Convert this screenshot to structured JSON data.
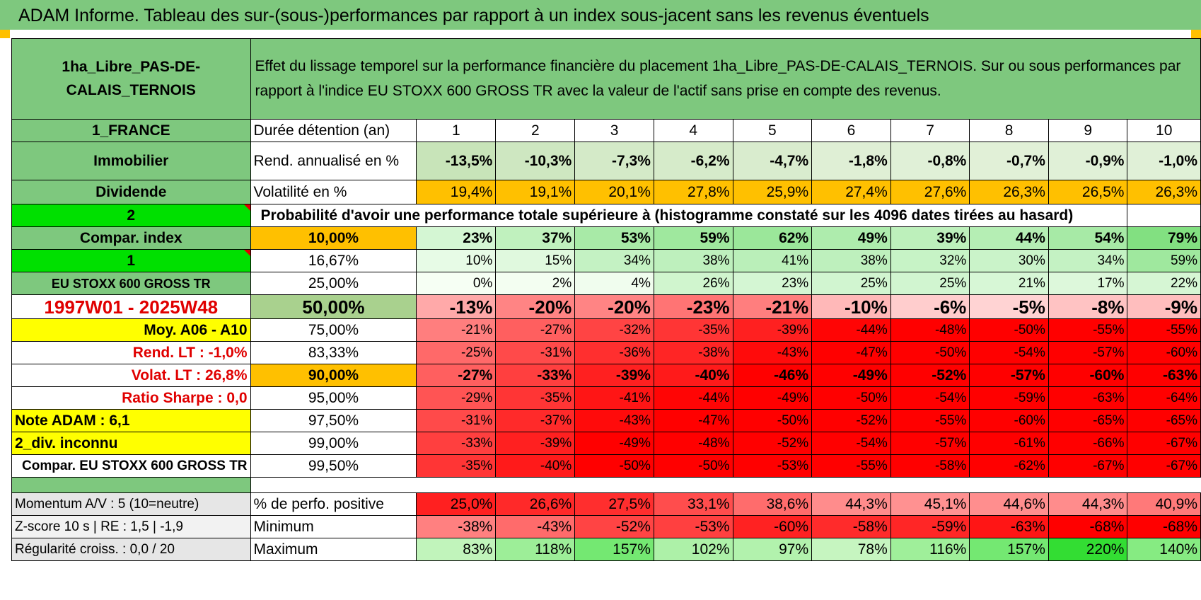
{
  "title": "ADAM Informe. Tableau des sur-(sous-)performances par rapport à un index sous-jacent sans les revenus éventuels",
  "asset_name": "1ha_Libre_PAS-DE-CALAIS_TERNOIS",
  "description": "Effet du lissage temporel sur la performance financière du placement 1ha_Libre_PAS-DE-CALAIS_TERNOIS. Sur ou sous performances par rapport à l'indice EU STOXX 600 GROSS TR avec la valeur de l'actif sans prise en compte des revenus.",
  "left_labels": {
    "country": "1_FRANCE",
    "category": "Immobilier",
    "type": "Dividende",
    "num2": "2",
    "compar_index": "Compar. index",
    "num1": "1",
    "index_name": "EU STOXX 600 GROSS TR",
    "period": "1997W01 - 2025W48",
    "moy": "Moy. A06 - A10",
    "rend_lt": "Rend. LT :    -1,0%",
    "volat_lt": "Volat. LT :    26,8%",
    "sharpe": "Ratio Sharpe :     0,0",
    "note": "Note ADAM : 6,1",
    "div": "2_div. inconnu",
    "compar": "Compar. EU STOXX 600 GROSS TR",
    "momentum": "Momentum A/V : 5 (10=neutre)",
    "zscore": "Z-score 10 s | RE : 1,5 | -1,9",
    "regularite": "Régularité croiss. : 0,0 / 20"
  },
  "rows_labels": {
    "duree": "Durée détention (an)",
    "rend": "Rend. annualisé en %",
    "volat": "Volatilité en %",
    "proba": "Probabilité d'avoir une performance totale supérieure à (histogramme constaté sur les 4096 dates tirées au hasard)",
    "positive": "% de perfo. positive",
    "minimum": "Minimum",
    "maximum": "Maximum"
  },
  "years": [
    "1",
    "2",
    "3",
    "4",
    "5",
    "6",
    "7",
    "8",
    "9",
    "10"
  ],
  "rend": [
    "-13,5%",
    "-10,3%",
    "-7,3%",
    "-6,2%",
    "-4,7%",
    "-1,8%",
    "-0,8%",
    "-0,7%",
    "-0,9%",
    "-1,0%"
  ],
  "volat": [
    "19,4%",
    "19,1%",
    "20,1%",
    "27,8%",
    "25,9%",
    "27,4%",
    "27,6%",
    "26,3%",
    "26,5%",
    "26,3%"
  ],
  "prob_rows": [
    {
      "pct": "10,00%",
      "bold": true,
      "values": [
        "23%",
        "37%",
        "53%",
        "59%",
        "62%",
        "49%",
        "39%",
        "44%",
        "54%",
        "79%"
      ]
    },
    {
      "pct": "16,67%",
      "bold": false,
      "values": [
        "10%",
        "15%",
        "34%",
        "38%",
        "41%",
        "38%",
        "32%",
        "30%",
        "34%",
        "59%"
      ]
    },
    {
      "pct": "25,00%",
      "bold": false,
      "values": [
        "0%",
        "2%",
        "4%",
        "26%",
        "23%",
        "25%",
        "25%",
        "21%",
        "17%",
        "22%"
      ]
    },
    {
      "pct": "50,00%",
      "bold": true,
      "values": [
        "-13%",
        "-20%",
        "-20%",
        "-23%",
        "-21%",
        "-10%",
        "-6%",
        "-5%",
        "-8%",
        "-9%"
      ]
    },
    {
      "pct": "75,00%",
      "bold": false,
      "values": [
        "-21%",
        "-27%",
        "-32%",
        "-35%",
        "-39%",
        "-44%",
        "-48%",
        "-50%",
        "-55%",
        "-55%"
      ]
    },
    {
      "pct": "83,33%",
      "bold": false,
      "values": [
        "-25%",
        "-31%",
        "-36%",
        "-38%",
        "-43%",
        "-47%",
        "-50%",
        "-54%",
        "-57%",
        "-60%"
      ]
    },
    {
      "pct": "90,00%",
      "bold": true,
      "values": [
        "-27%",
        "-33%",
        "-39%",
        "-40%",
        "-46%",
        "-49%",
        "-52%",
        "-57%",
        "-60%",
        "-63%"
      ]
    },
    {
      "pct": "95,00%",
      "bold": false,
      "values": [
        "-29%",
        "-35%",
        "-41%",
        "-44%",
        "-49%",
        "-50%",
        "-54%",
        "-59%",
        "-63%",
        "-64%"
      ]
    },
    {
      "pct": "97,50%",
      "bold": false,
      "values": [
        "-31%",
        "-37%",
        "-43%",
        "-47%",
        "-50%",
        "-52%",
        "-55%",
        "-60%",
        "-65%",
        "-65%"
      ]
    },
    {
      "pct": "99,00%",
      "bold": false,
      "values": [
        "-33%",
        "-39%",
        "-49%",
        "-48%",
        "-52%",
        "-54%",
        "-57%",
        "-61%",
        "-66%",
        "-67%"
      ]
    },
    {
      "pct": "99,50%",
      "bold": false,
      "values": [
        "-35%",
        "-40%",
        "-50%",
        "-50%",
        "-53%",
        "-55%",
        "-58%",
        "-62%",
        "-67%",
        "-67%"
      ]
    }
  ],
  "positive": [
    "25,0%",
    "26,6%",
    "27,5%",
    "33,1%",
    "38,6%",
    "44,3%",
    "45,1%",
    "44,6%",
    "44,3%",
    "40,9%"
  ],
  "minimum": [
    "-38%",
    "-43%",
    "-52%",
    "-53%",
    "-60%",
    "-58%",
    "-59%",
    "-63%",
    "-68%",
    "-68%"
  ],
  "maximum": [
    "83%",
    "118%",
    "157%",
    "102%",
    "97%",
    "78%",
    "116%",
    "157%",
    "220%",
    "140%"
  ],
  "colors": {
    "header_green": "#7ec87e",
    "orange": "#ffc000",
    "bright_green": "#00e000",
    "yellow": "#ffff00",
    "red_text": "#e00000",
    "neg_red": "#ff0000",
    "pos_green": "#63d863"
  }
}
